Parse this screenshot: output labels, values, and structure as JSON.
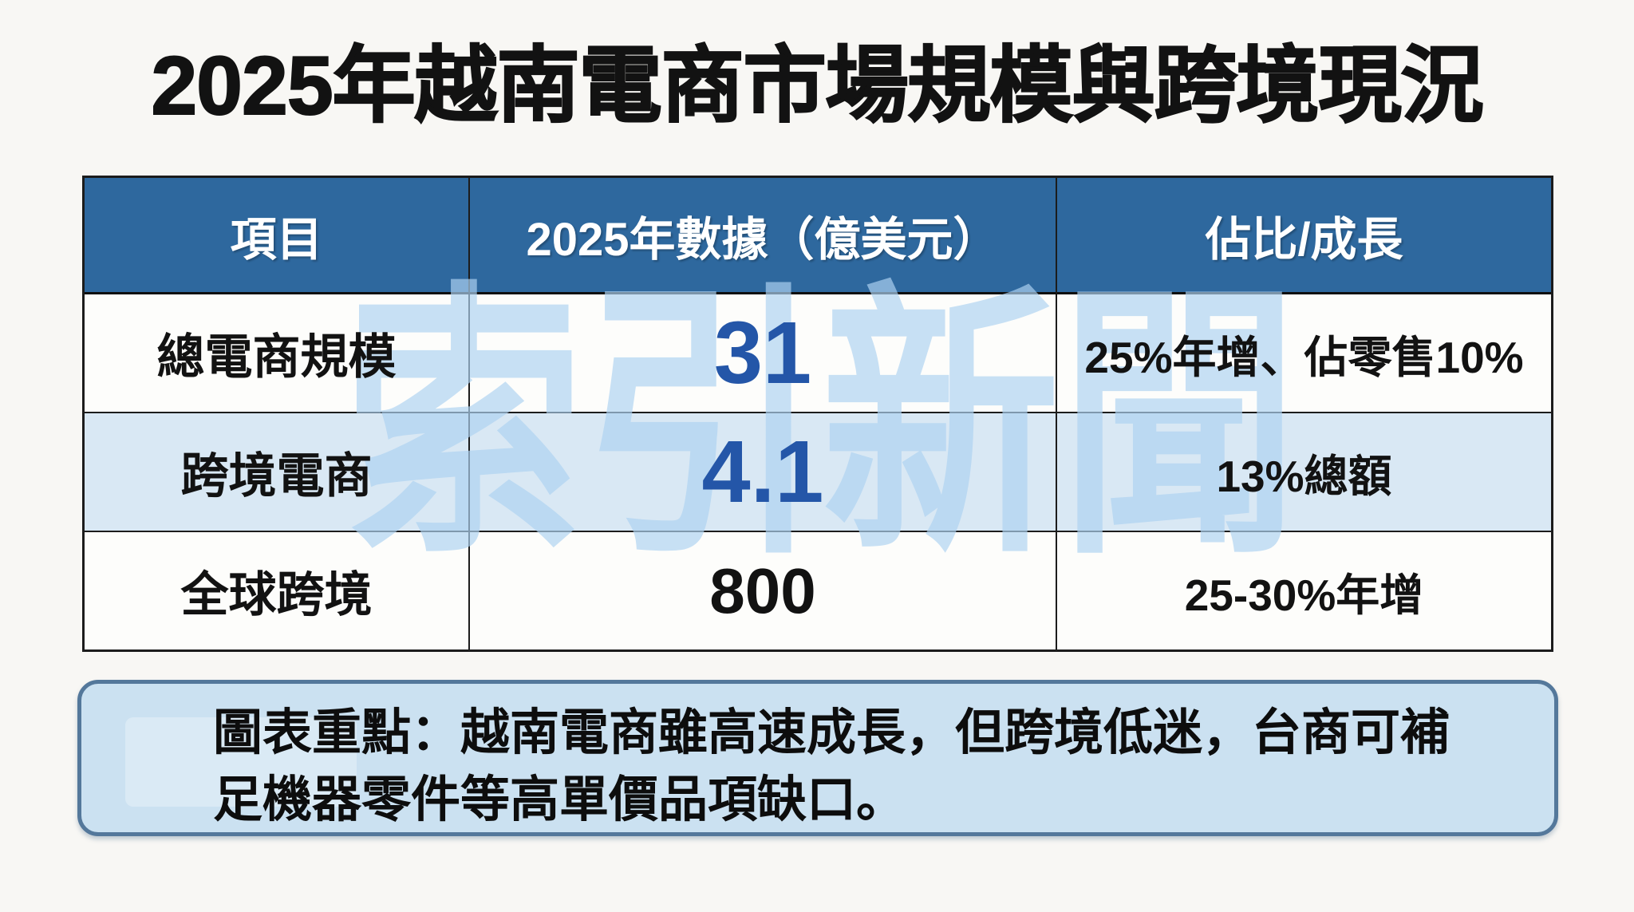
{
  "title": "2025年越南電商市場規模與跨境現況",
  "watermark": "索引新聞",
  "table": {
    "headers": {
      "item": "項目",
      "value": "2025年數據（億美元）",
      "ratio": "佔比/成長"
    },
    "rows": [
      {
        "item": "總電商規模",
        "value": "31",
        "ratio": "25%年增、佔零售10%"
      },
      {
        "item": "跨境電商",
        "value": "4.1",
        "ratio": "13%總額"
      },
      {
        "item": "全球跨境",
        "value": "800",
        "ratio": "25-30%年增"
      }
    ]
  },
  "summary": {
    "text": "圖表重點：越南電商雖高速成長，但跨境低迷，台商可補足機器零件等高單價品項缺口。"
  },
  "colors": {
    "page_bg": "#f8f7f4",
    "header_bg": "#2e689e",
    "header_text": "#ffffff",
    "row_bg": "#fdfdfb",
    "row_alt_bg": "#d9e8f4",
    "grid_line": "#1c1c1c",
    "value_blue": "#2456a8",
    "text_dark": "#121212",
    "note_bg": "#cbe1f1",
    "note_border": "#54789b",
    "watermark_blue": "#aed3f2"
  },
  "chart_data": {
    "type": "table",
    "title": "2025年越南電商市場規模與跨境現況",
    "columns": [
      "項目",
      "2025年數據（億美元）",
      "佔比/成長"
    ],
    "rows": [
      [
        "總電商規模",
        31,
        "25%年增、佔零售10%"
      ],
      [
        "跨境電商",
        4.1,
        "13%總額"
      ],
      [
        "全球跨境",
        800,
        "25-30%年增"
      ]
    ],
    "unit": "億美元",
    "annotation": "圖表重點：越南電商雖高速成長，但跨境低迷，台商可補足機器零件等高單價品項缺口。"
  }
}
